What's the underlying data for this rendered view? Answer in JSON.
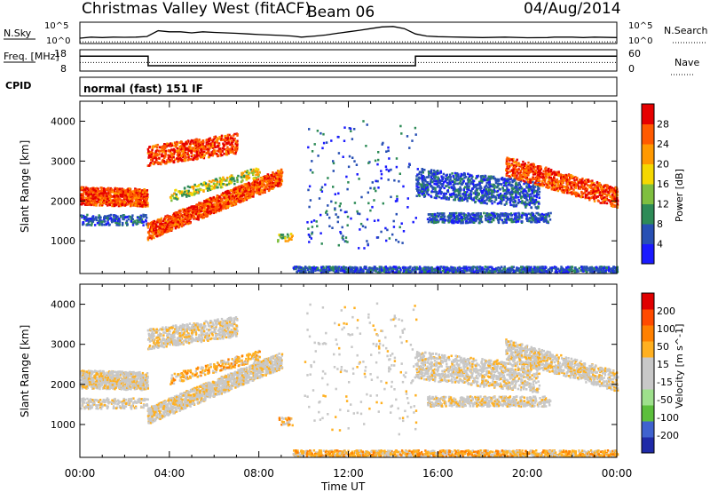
{
  "header": {
    "title": "Christmas Valley West (fitACF)",
    "beam": "Beam 06",
    "date": "04/Aug/2014"
  },
  "colors": {
    "power": [
      "#1a1aff",
      "#2850b4",
      "#2e8b57",
      "#7fbf3f",
      "#f5d800",
      "#ff9900",
      "#ff5a00",
      "#e60000"
    ],
    "velocity": [
      "#1f2aa8",
      "#3f62cf",
      "#5cbf3c",
      "#9ee08c",
      "#c8c8c8",
      "#c8c8c8",
      "#ffb020",
      "#ff8000",
      "#ff4a00",
      "#e00000"
    ]
  },
  "chart_data": [
    {
      "name": "nsky_nsearch",
      "type": "line",
      "left_label": "N.Sky",
      "right_label": "N.Search",
      "left_ticks": [
        "10^5",
        "10^0"
      ],
      "right_ticks": [
        "10^5",
        "10^0"
      ],
      "x_range_hours": [
        0,
        24
      ],
      "series": [
        {
          "style": "solid",
          "x": [
            0,
            0.5,
            1,
            1.5,
            2,
            2.5,
            3,
            3.5,
            4,
            4.5,
            5,
            5.5,
            6,
            6.5,
            7,
            7.5,
            8,
            8.5,
            9,
            9.5,
            9.9,
            10.5,
            11,
            11.5,
            12,
            12.5,
            13,
            13.5,
            14,
            14.5,
            15,
            15.5,
            16,
            17,
            18,
            19,
            20,
            20.9,
            21.2,
            22,
            22.5,
            23,
            24
          ],
          "y": [
            0.25,
            0.3,
            0.28,
            0.3,
            0.29,
            0.3,
            0.33,
            0.6,
            0.55,
            0.55,
            0.5,
            0.55,
            0.52,
            0.5,
            0.48,
            0.45,
            0.42,
            0.4,
            0.38,
            0.35,
            0.3,
            0.35,
            0.4,
            0.48,
            0.55,
            0.62,
            0.7,
            0.78,
            0.8,
            0.7,
            0.45,
            0.35,
            0.32,
            0.3,
            0.28,
            0.3,
            0.27,
            0.28,
            0.3,
            0.3,
            0.28,
            0.3,
            0.28
          ]
        },
        {
          "style": "dotted",
          "x": [
            0,
            24
          ],
          "y": [
            0.08,
            0.08
          ]
        }
      ]
    },
    {
      "name": "freq_nave",
      "type": "line",
      "left_label": "Freq. [MHz]",
      "right_label": "Nave",
      "left_ticks": [
        "18",
        "8"
      ],
      "right_ticks": [
        "60",
        "0"
      ],
      "x_range_hours": [
        0,
        24
      ],
      "series": [
        {
          "style": "solid",
          "x": [
            0,
            3.05,
            3.05,
            15,
            15,
            24
          ],
          "y": [
            15,
            15,
            10.5,
            10.5,
            15,
            15
          ]
        },
        {
          "style": "dotted",
          "x": [
            0,
            24
          ],
          "y": [
            12,
            12
          ]
        }
      ]
    },
    {
      "name": "power",
      "type": "heatmap",
      "ylabel": "Slant Range [km]",
      "y_ticks": [
        1000,
        2000,
        3000,
        4000
      ],
      "x_range_hours": [
        0,
        24
      ],
      "y_range_km": [
        180,
        4500
      ],
      "colorbar_label": "Power [dB]",
      "colorbar_ticks": [
        "28",
        "24",
        "20",
        "16",
        "12",
        "8",
        "4"
      ]
    },
    {
      "name": "velocity",
      "type": "heatmap",
      "ylabel": "Slant Range [km]",
      "y_ticks": [
        1000,
        2000,
        3000,
        4000
      ],
      "xlabel": "Time UT",
      "x_ticks": [
        "00:00",
        "04:00",
        "08:00",
        "12:00",
        "16:00",
        "20:00",
        "00:00"
      ],
      "x_range_hours": [
        0,
        24
      ],
      "y_range_km": [
        180,
        4500
      ],
      "colorbar_label": "Velocity [m s^-1]",
      "colorbar_ticks": [
        "200",
        "100",
        "50",
        "15",
        "-15",
        "-50",
        "-100",
        "-200"
      ]
    }
  ],
  "cpid": {
    "label": "CPID",
    "mode": "normal (fast) 151 IF"
  }
}
